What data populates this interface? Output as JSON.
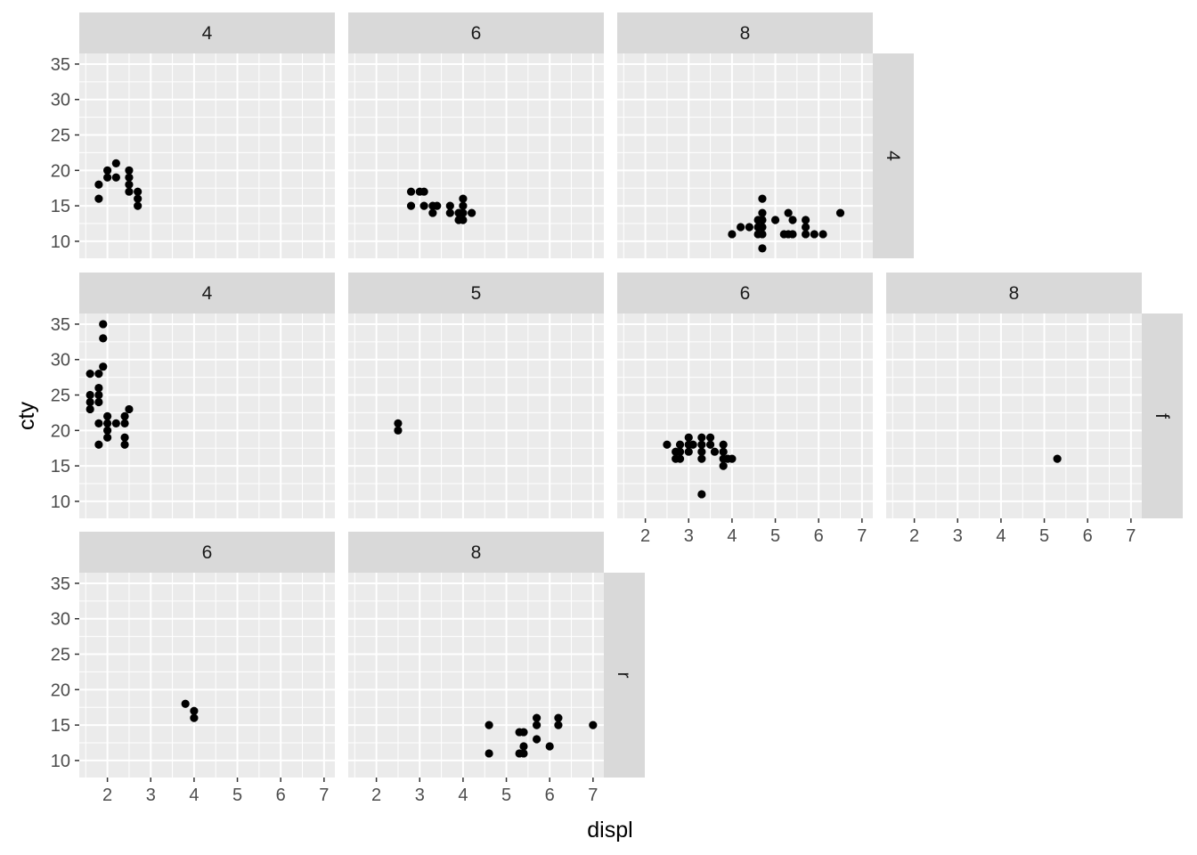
{
  "chart_data": {
    "type": "scatter",
    "xlabel": "displ",
    "ylabel": "cty",
    "xlim": [
      1.35,
      7.25
    ],
    "ylim": [
      7.6,
      36.5
    ],
    "x_ticks": [
      2,
      3,
      4,
      5,
      6,
      7
    ],
    "y_ticks": [
      10,
      15,
      20,
      25,
      30,
      35
    ],
    "grid": true,
    "facets": {
      "cols_variable": "cyl",
      "rows_variable": "drv",
      "rows": [
        "4",
        "f",
        "r"
      ],
      "cols": [
        "4",
        "5",
        "6",
        "8"
      ]
    },
    "panels": [
      {
        "cyl": "4",
        "drv": "4",
        "points": [
          [
            1.8,
            18
          ],
          [
            1.8,
            16
          ],
          [
            2.0,
            20
          ],
          [
            2.0,
            19
          ],
          [
            2.2,
            21
          ],
          [
            2.2,
            19
          ],
          [
            2.5,
            20
          ],
          [
            2.5,
            19
          ],
          [
            2.5,
            18
          ],
          [
            2.5,
            17
          ],
          [
            2.7,
            17
          ],
          [
            2.7,
            16
          ],
          [
            2.7,
            15
          ]
        ]
      },
      {
        "cyl": "6",
        "drv": "4",
        "points": [
          [
            2.8,
            17
          ],
          [
            2.8,
            15
          ],
          [
            3.1,
            17
          ],
          [
            3.0,
            17
          ],
          [
            3.1,
            15
          ],
          [
            3.3,
            15
          ],
          [
            3.3,
            14
          ],
          [
            3.4,
            15
          ],
          [
            3.7,
            15
          ],
          [
            3.7,
            14
          ],
          [
            4.0,
            16
          ],
          [
            4.0,
            15
          ],
          [
            4.0,
            14
          ],
          [
            4.0,
            13
          ],
          [
            3.9,
            14
          ],
          [
            3.9,
            13
          ],
          [
            4.2,
            14
          ]
        ]
      },
      {
        "cyl": "8",
        "drv": "4",
        "points": [
          [
            4.0,
            11
          ],
          [
            4.2,
            12
          ],
          [
            4.4,
            12
          ],
          [
            4.6,
            13
          ],
          [
            4.6,
            12
          ],
          [
            4.6,
            11
          ],
          [
            4.7,
            16
          ],
          [
            4.7,
            14
          ],
          [
            4.7,
            13
          ],
          [
            4.7,
            12
          ],
          [
            4.7,
            11
          ],
          [
            4.7,
            9
          ],
          [
            5.0,
            13
          ],
          [
            5.2,
            11
          ],
          [
            5.3,
            14
          ],
          [
            5.3,
            11
          ],
          [
            5.4,
            13
          ],
          [
            5.4,
            11
          ],
          [
            5.7,
            13
          ],
          [
            5.7,
            12
          ],
          [
            5.7,
            11
          ],
          [
            5.9,
            11
          ],
          [
            6.1,
            11
          ],
          [
            6.5,
            14
          ]
        ]
      },
      {
        "cyl": "4",
        "drv": "f",
        "points": [
          [
            1.6,
            28
          ],
          [
            1.6,
            25
          ],
          [
            1.6,
            24
          ],
          [
            1.6,
            23
          ],
          [
            1.8,
            28
          ],
          [
            1.8,
            26
          ],
          [
            1.8,
            25
          ],
          [
            1.8,
            24
          ],
          [
            1.8,
            21
          ],
          [
            1.8,
            18
          ],
          [
            1.9,
            35
          ],
          [
            1.9,
            33
          ],
          [
            1.9,
            29
          ],
          [
            2.0,
            22
          ],
          [
            2.0,
            21
          ],
          [
            2.0,
            20
          ],
          [
            2.0,
            19
          ],
          [
            2.2,
            21
          ],
          [
            2.4,
            22
          ],
          [
            2.4,
            21
          ],
          [
            2.4,
            19
          ],
          [
            2.4,
            18
          ],
          [
            2.5,
            23
          ]
        ]
      },
      {
        "cyl": "5",
        "drv": "f",
        "points": [
          [
            2.5,
            21
          ],
          [
            2.5,
            20
          ]
        ]
      },
      {
        "cyl": "6",
        "drv": "f",
        "points": [
          [
            2.5,
            18
          ],
          [
            2.7,
            17
          ],
          [
            2.7,
            16
          ],
          [
            2.8,
            18
          ],
          [
            2.8,
            17
          ],
          [
            2.8,
            16
          ],
          [
            3.0,
            19
          ],
          [
            3.0,
            18
          ],
          [
            3.0,
            17
          ],
          [
            3.1,
            18
          ],
          [
            3.3,
            19
          ],
          [
            3.3,
            18
          ],
          [
            3.3,
            17
          ],
          [
            3.3,
            16
          ],
          [
            3.3,
            11
          ],
          [
            3.5,
            19
          ],
          [
            3.5,
            18
          ],
          [
            3.6,
            17
          ],
          [
            3.8,
            18
          ],
          [
            3.8,
            17
          ],
          [
            3.8,
            16
          ],
          [
            3.8,
            15
          ],
          [
            3.9,
            16
          ],
          [
            4.0,
            16
          ]
        ]
      },
      {
        "cyl": "8",
        "drv": "f",
        "points": [
          [
            5.3,
            16
          ]
        ]
      },
      {
        "cyl": "6",
        "drv": "r",
        "points": [
          [
            3.8,
            18
          ],
          [
            4.0,
            17
          ],
          [
            4.0,
            16
          ]
        ]
      },
      {
        "cyl": "8",
        "drv": "r",
        "points": [
          [
            4.6,
            15
          ],
          [
            4.6,
            11
          ],
          [
            5.3,
            14
          ],
          [
            5.3,
            11
          ],
          [
            5.4,
            14
          ],
          [
            5.4,
            12
          ],
          [
            5.4,
            11
          ],
          [
            5.7,
            16
          ],
          [
            5.7,
            15
          ],
          [
            5.7,
            13
          ],
          [
            6.0,
            12
          ],
          [
            6.2,
            16
          ],
          [
            6.2,
            15
          ],
          [
            7.0,
            15
          ]
        ]
      }
    ]
  }
}
